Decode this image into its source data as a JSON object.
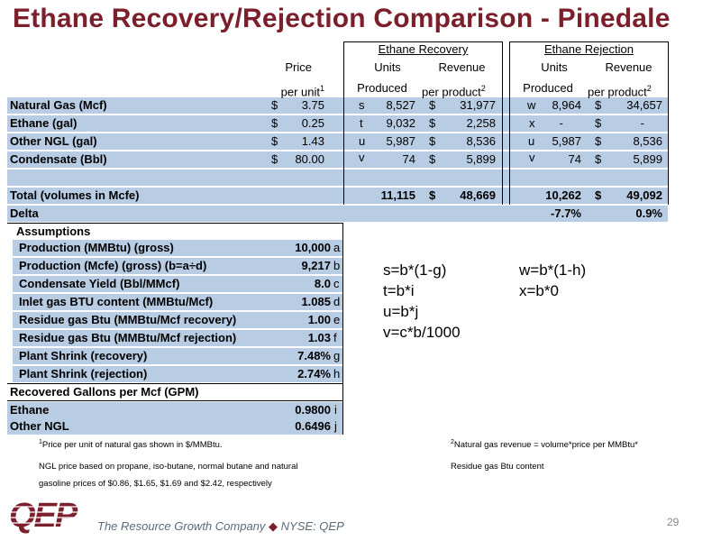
{
  "slide": {
    "title": "Ethane Recovery/Rejection Comparison - Pinedale",
    "page_number": "29"
  },
  "header": {
    "recovery_group": "Ethane Recovery",
    "rejection_group": "Ethane Rejection",
    "price_top": "Price",
    "price_bottom": "per unit",
    "sup1": "1",
    "units_top": "Units",
    "units_bottom": "Produced",
    "revenue_top": "Revenue",
    "revenue_bottom": "per product",
    "sup2": "2"
  },
  "rows": [
    {
      "label": "Natural Gas (Mcf)",
      "price_cur": "$",
      "price": "3.75",
      "rec_code": "s",
      "rec_units": "8,527",
      "rec_cur": "$",
      "rec_rev": "31,977",
      "rej_code": "w",
      "rej_units": "8,964",
      "rej_cur": "$",
      "rej_rev": "34,657"
    },
    {
      "label": "Ethane (gal)",
      "price_cur": "$",
      "price": "0.25",
      "rec_code": "t",
      "rec_units": "9,032",
      "rec_cur": "$",
      "rec_rev": "2,258",
      "rej_code": "x",
      "rej_units": "-",
      "rej_cur": "$",
      "rej_rev": "-"
    },
    {
      "label": "Other NGL (gal)",
      "price_cur": "$",
      "price": "1.43",
      "rec_code": "u",
      "rec_units": "5,987",
      "rec_cur": "$",
      "rec_rev": "8,536",
      "rej_code": "u",
      "rej_units": "5,987",
      "rej_cur": "$",
      "rej_rev": "8,536"
    },
    {
      "label": "Condensate (Bbl)",
      "price_cur": "$",
      "price": "80.00",
      "rec_code": "v",
      "rec_units": "74",
      "rec_cur": "$",
      "rec_rev": "5,899",
      "rej_code": "v",
      "rej_units": "74",
      "rej_cur": "$",
      "rej_rev": "5,899"
    }
  ],
  "total": {
    "label": "Total (volumes in Mcfe)",
    "rec_units": "11,115",
    "rec_cur": "$",
    "rec_rev": "48,669",
    "rej_units": "10,262",
    "rej_cur": "$",
    "rej_rev": "49,092"
  },
  "delta": {
    "label": "Delta",
    "units": "-7.7%",
    "rev": "0.9%"
  },
  "assumptions": {
    "heading": "Assumptions",
    "items": [
      {
        "label": "Production (MMBtu) (gross)",
        "value": "10,000",
        "code": "a"
      },
      {
        "label": "Production (Mcfe) (gross) (b=a÷d)",
        "value": "9,217",
        "code": "b"
      },
      {
        "label": "Condensate Yield (Bbl/MMcf)",
        "value": "8.0",
        "code": "c"
      },
      {
        "label": "Inlet gas BTU content (MMBtu/Mcf)",
        "value": "1.085",
        "code": "d"
      },
      {
        "label": "Residue gas Btu (MMBtu/Mcf recovery)",
        "value": "1.00",
        "code": "e"
      },
      {
        "label": "Residue gas Btu (MMBtu/Mcf rejection)",
        "value": "1.03",
        "code": "f"
      },
      {
        "label": "Plant Shrink (recovery)",
        "value": "7.48%",
        "code": "g"
      },
      {
        "label": "Plant Shrink (rejection)",
        "value": "2.74%",
        "code": "h"
      }
    ]
  },
  "gpm": {
    "heading": "Recovered Gallons per Mcf (GPM)",
    "items": [
      {
        "label": "Ethane",
        "value": "0.9800",
        "code": "i"
      },
      {
        "label": "Other NGL",
        "value": "0.6496",
        "code": "j"
      }
    ]
  },
  "formulas": {
    "left": [
      "s=b*(1-g)",
      "t=b*i",
      "u=b*j",
      "v=c*b/1000"
    ],
    "right": [
      "w=b*(1-h)",
      "x=b*0"
    ]
  },
  "footnotes": {
    "n1_sup": "1",
    "n1": "Price per unit of natural gas shown in $/MMBtu.",
    "n1_line2": "NGL price based on propane, iso-butane, normal butane and natural",
    "n1_line3": "gasoline prices of $0.86, $1.65, $1.69 and $2.42, respectively",
    "n2_sup": "2",
    "n2": "Natural gas revenue = volume*price per MMBtu*",
    "n2_line2": "Residue gas Btu content"
  },
  "footer": {
    "logo_text": "QEP",
    "tagline": "The Resource Growth Company",
    "diamond": "◆",
    "ticker": "NYSE: QEP",
    "colors": {
      "brand": "#7a1f2b",
      "band": "#b8cce4",
      "tagline": "#5a6b7a"
    }
  }
}
